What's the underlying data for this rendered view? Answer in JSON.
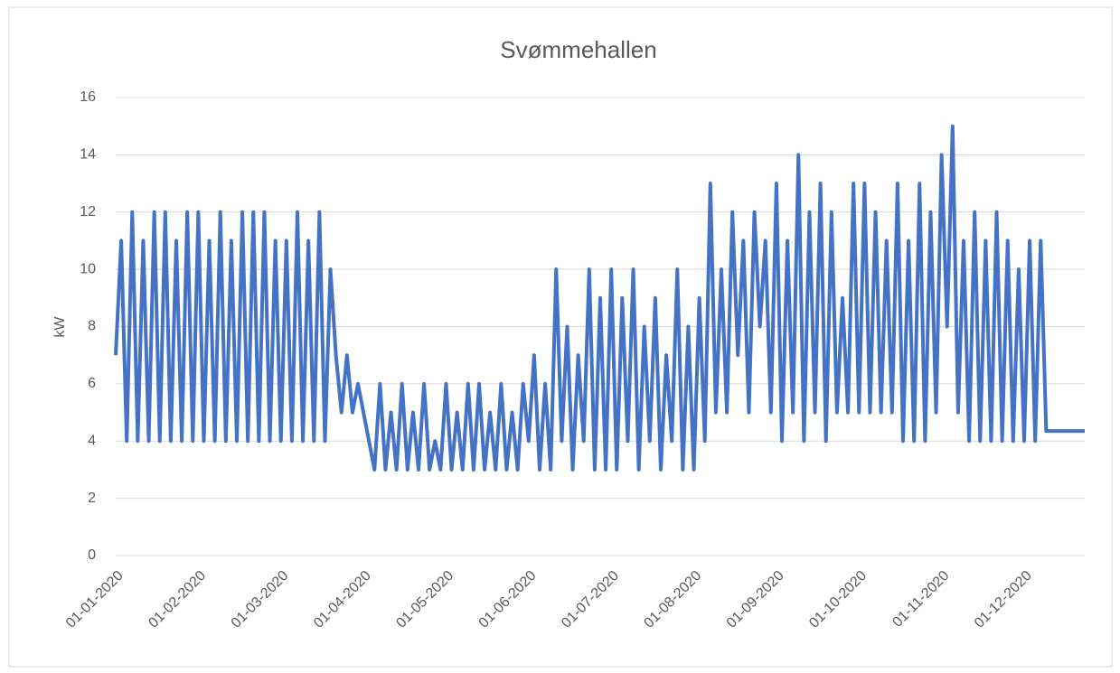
{
  "chart_data": {
    "type": "line",
    "title": "Svømmehallen",
    "y_label": "kW",
    "categories": [
      "01-01-2020",
      null,
      null,
      null,
      null,
      null,
      null,
      null,
      null,
      null,
      null,
      null,
      null,
      null,
      null,
      "01-02-2020",
      null,
      null,
      null,
      null,
      null,
      null,
      null,
      null,
      null,
      null,
      null,
      null,
      null,
      null,
      "01-03-2020",
      null,
      null,
      null,
      null,
      null,
      null,
      null,
      null,
      null,
      null,
      null,
      null,
      null,
      null,
      "01-04-2020",
      null,
      null,
      null,
      null,
      null,
      null,
      null,
      null,
      null,
      null,
      null,
      null,
      null,
      null,
      "01-05-2020",
      null,
      null,
      null,
      null,
      null,
      null,
      null,
      null,
      null,
      null,
      null,
      null,
      null,
      null,
      "01-06-2020",
      null,
      null,
      null,
      null,
      null,
      null,
      null,
      null,
      null,
      null,
      null,
      null,
      null,
      null,
      "01-07-2020",
      null,
      null,
      null,
      null,
      null,
      null,
      null,
      null,
      null,
      null,
      null,
      null,
      null,
      null,
      "01-08-2020",
      null,
      null,
      null,
      null,
      null,
      null,
      null,
      null,
      null,
      null,
      null,
      null,
      null,
      null,
      "01-09-2020",
      null,
      null,
      null,
      null,
      null,
      null,
      null,
      null,
      null,
      null,
      null,
      null,
      null,
      null,
      "01-10-2020",
      null,
      null,
      null,
      null,
      null,
      null,
      null,
      null,
      null,
      null,
      null,
      null,
      null,
      null,
      "01-11-2020",
      null,
      null,
      null,
      null,
      null,
      null,
      null,
      null,
      null,
      null,
      null,
      null,
      null,
      null,
      "01-12-2020",
      null,
      null,
      null,
      null,
      null,
      null,
      null,
      null,
      null,
      null,
      null
    ],
    "series": [
      {
        "name": "kW",
        "color": "#4472c4",
        "values": [
          7,
          11,
          4,
          12,
          4,
          11,
          4,
          12,
          4,
          12,
          4,
          11,
          4,
          12,
          4,
          12,
          4,
          11,
          4,
          12,
          4,
          11,
          4,
          12,
          4,
          12,
          4,
          12,
          4,
          11,
          4,
          11,
          4,
          12,
          4,
          11,
          4,
          12,
          4,
          10,
          7,
          5,
          7,
          5,
          6,
          5,
          4,
          3,
          6,
          3,
          5,
          3,
          6,
          3,
          5,
          3,
          6,
          3,
          4,
          3,
          6,
          3,
          5,
          3,
          6,
          3,
          6,
          3,
          5,
          3,
          6,
          3,
          5,
          3,
          6,
          4,
          7,
          3,
          6,
          3,
          10,
          4,
          8,
          3,
          7,
          4,
          10,
          3,
          9,
          3,
          10,
          3,
          9,
          4,
          10,
          3,
          8,
          4,
          9,
          3,
          7,
          4,
          10,
          3,
          8,
          3,
          9,
          4,
          13,
          5,
          10,
          5,
          12,
          7,
          11,
          5,
          12,
          8,
          11,
          5,
          13,
          4,
          11,
          5,
          14,
          4,
          12,
          5,
          13,
          4,
          12,
          5,
          9,
          5,
          13,
          5,
          13,
          5,
          12,
          5,
          11,
          5,
          13,
          4,
          11,
          4,
          13,
          4,
          12,
          5,
          14,
          8,
          15,
          5,
          11,
          4,
          12,
          4,
          11,
          4,
          12,
          4,
          11,
          4,
          10,
          4,
          11,
          4,
          11,
          4.35,
          4.35,
          4.35,
          4.35,
          4.35,
          4.35,
          4.35,
          4.35
        ]
      }
    ],
    "ylim": [
      0,
      16
    ],
    "yticks": [
      0,
      2,
      4,
      6,
      8,
      10,
      12,
      14,
      16
    ],
    "grid": true
  }
}
